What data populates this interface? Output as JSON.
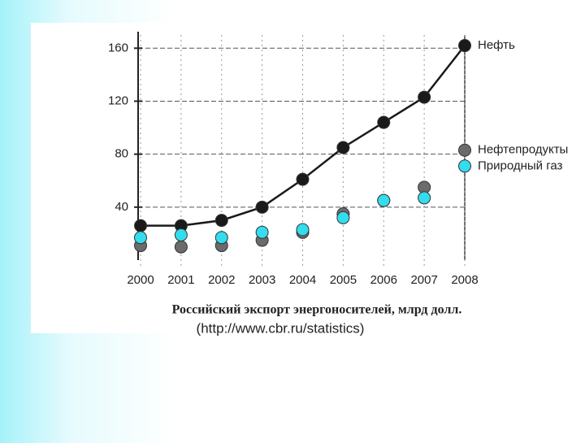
{
  "chart_data": {
    "type": "line",
    "caption": "Российский экспорт энергоносителей, млрд долл.",
    "source": "(http://www.cbr.ru/statistics)",
    "categories": [
      "2000",
      "2001",
      "2002",
      "2003",
      "2004",
      "2005",
      "2006",
      "2007",
      "2008"
    ],
    "series": [
      {
        "name": "Нефть",
        "color": "#1a1a1a",
        "mode": "line",
        "values": [
          26,
          26,
          30,
          40,
          61,
          85,
          104,
          123,
          162
        ]
      },
      {
        "name": "Нефтепродукты",
        "color": "#6b6b6b",
        "mode": "markers",
        "values": [
          11,
          10,
          11,
          15,
          21,
          35,
          45,
          55,
          83
        ]
      },
      {
        "name": "Природный газ",
        "color": "#33ddee",
        "mode": "markers",
        "values": [
          17,
          19,
          17,
          21,
          23,
          32,
          45,
          47,
          71
        ]
      }
    ],
    "ylim": [
      0,
      170
    ],
    "yticks": [
      40,
      80,
      120,
      160
    ],
    "grid": true
  }
}
